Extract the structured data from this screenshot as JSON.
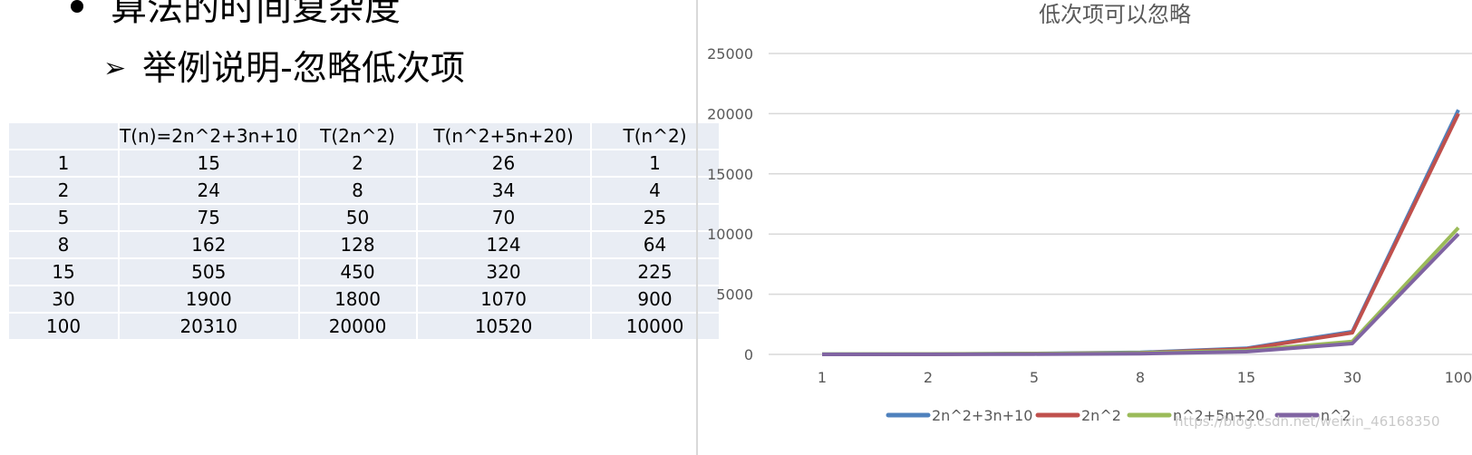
{
  "slide": {
    "heading": "算法的时间复杂度",
    "subheading": "举例说明-忽略低次项",
    "watermark": "https://blog.csdn.net/weixin_46168350"
  },
  "table": {
    "headers": [
      "",
      "T(n)=2n^2+3n+10",
      "T(2n^2)",
      "T(n^2+5n+20)",
      "T(n^2)"
    ],
    "rows": [
      [
        "1",
        "15",
        "2",
        "26",
        "1"
      ],
      [
        "2",
        "24",
        "8",
        "34",
        "4"
      ],
      [
        "5",
        "75",
        "50",
        "70",
        "25"
      ],
      [
        "8",
        "162",
        "128",
        "124",
        "64"
      ],
      [
        "15",
        "505",
        "450",
        "320",
        "225"
      ],
      [
        "30",
        "1900",
        "1800",
        "1070",
        "900"
      ],
      [
        "100",
        "20310",
        "20000",
        "10520",
        "10000"
      ]
    ]
  },
  "chart_data": {
    "type": "line",
    "title": "低次项可以忽略",
    "categories": [
      "1",
      "2",
      "5",
      "8",
      "15",
      "30",
      "100"
    ],
    "series": [
      {
        "name": "2n^2+3n+10",
        "color": "#4f81bd",
        "values": [
          15,
          24,
          75,
          162,
          505,
          1900,
          20310
        ]
      },
      {
        "name": "2n^2",
        "color": "#c0504d",
        "values": [
          2,
          8,
          50,
          128,
          450,
          1800,
          20000
        ]
      },
      {
        "name": "n^2+5n+20",
        "color": "#9bbb59",
        "values": [
          26,
          34,
          70,
          124,
          320,
          1070,
          10520
        ]
      },
      {
        "name": "n^2",
        "color": "#8064a2",
        "values": [
          1,
          4,
          25,
          64,
          225,
          900,
          10000
        ]
      }
    ],
    "yticks": [
      0,
      5000,
      10000,
      15000,
      20000,
      25000
    ],
    "ylim": [
      0,
      25000
    ],
    "grid": true,
    "legend": "bottom"
  }
}
